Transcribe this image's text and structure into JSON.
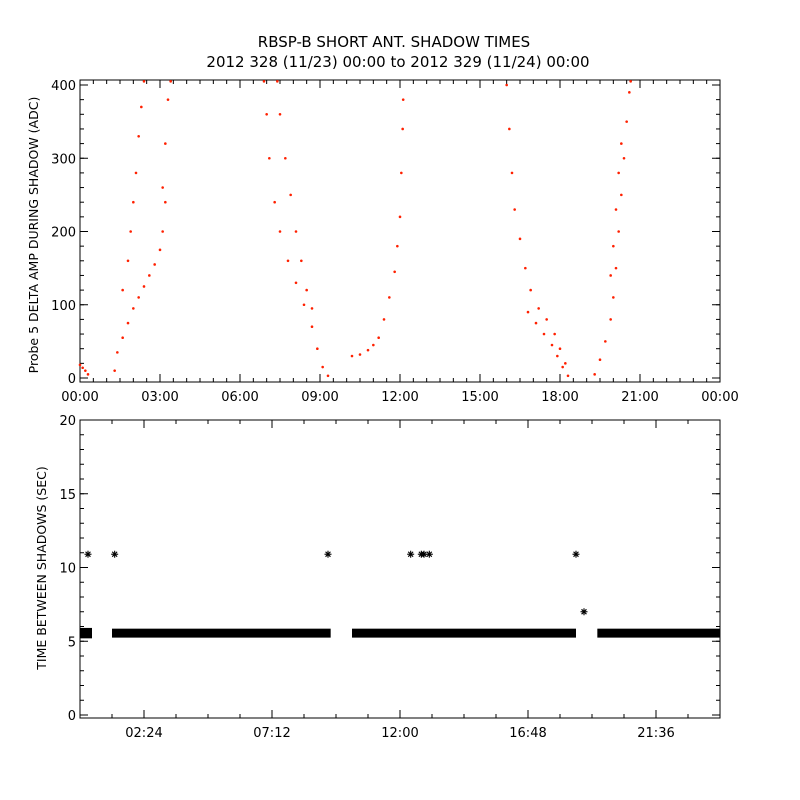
{
  "title": {
    "line1": "RBSP-B SHORT ANT. SHADOW TIMES",
    "line2": "2012 328 (11/23) 00:00 to 2012 329 (11/24) 00:00"
  },
  "colors": {
    "series_top": "#ff2000",
    "series_bottom": "#000000"
  },
  "chart_data": [
    {
      "type": "scatter",
      "ylabel": "Probe 5 DELTA AMP DURING SHADOW (ADC)",
      "xlabel": "",
      "x_unit": "hours",
      "xlim": [
        0,
        24
      ],
      "ylim": [
        0,
        400
      ],
      "x_tick_labels": [
        "00:00",
        "03:00",
        "06:00",
        "09:00",
        "12:00",
        "15:00",
        "18:00",
        "21:00",
        "00:00"
      ],
      "x_tick_values": [
        0,
        3,
        6,
        9,
        12,
        15,
        18,
        21,
        24
      ],
      "y_tick_labels": [
        "0",
        "100",
        "200",
        "300",
        "400"
      ],
      "y_tick_values": [
        0,
        100,
        200,
        300,
        400
      ],
      "grid": false,
      "series": [
        {
          "points": [
            [
              0.0,
              18
            ],
            [
              0.1,
              14
            ],
            [
              0.2,
              10
            ],
            [
              0.3,
              5
            ],
            [
              1.3,
              10
            ],
            [
              1.4,
              35
            ],
            [
              1.6,
              55
            ],
            [
              1.8,
              75
            ],
            [
              2.0,
              95
            ],
            [
              2.2,
              110
            ],
            [
              2.4,
              125
            ],
            [
              2.6,
              140
            ],
            [
              2.8,
              155
            ],
            [
              3.0,
              175
            ],
            [
              3.1,
              200
            ],
            [
              3.2,
              240
            ],
            [
              1.6,
              120
            ],
            [
              1.8,
              160
            ],
            [
              1.9,
              200
            ],
            [
              2.0,
              240
            ],
            [
              2.1,
              280
            ],
            [
              2.2,
              330
            ],
            [
              2.3,
              370
            ],
            [
              2.4,
              405
            ],
            [
              3.1,
              260
            ],
            [
              3.2,
              320
            ],
            [
              3.3,
              380
            ],
            [
              3.4,
              405
            ],
            [
              6.9,
              405
            ],
            [
              7.0,
              360
            ],
            [
              7.1,
              300
            ],
            [
              7.3,
              240
            ],
            [
              7.5,
              200
            ],
            [
              7.8,
              160
            ],
            [
              8.1,
              130
            ],
            [
              8.4,
              100
            ],
            [
              8.7,
              70
            ],
            [
              8.9,
              40
            ],
            [
              9.1,
              15
            ],
            [
              9.3,
              3
            ],
            [
              7.4,
              405
            ],
            [
              7.5,
              360
            ],
            [
              7.7,
              300
            ],
            [
              7.9,
              250
            ],
            [
              8.1,
              200
            ],
            [
              8.3,
              160
            ],
            [
              8.5,
              120
            ],
            [
              8.7,
              95
            ],
            [
              10.2,
              30
            ],
            [
              10.5,
              32
            ],
            [
              10.8,
              38
            ],
            [
              11.0,
              45
            ],
            [
              11.2,
              55
            ],
            [
              11.4,
              80
            ],
            [
              11.6,
              110
            ],
            [
              11.8,
              145
            ],
            [
              11.9,
              180
            ],
            [
              12.0,
              220
            ],
            [
              12.05,
              280
            ],
            [
              12.1,
              340
            ],
            [
              12.12,
              380
            ],
            [
              16.0,
              400
            ],
            [
              16.1,
              340
            ],
            [
              16.2,
              280
            ],
            [
              16.3,
              230
            ],
            [
              16.5,
              190
            ],
            [
              16.7,
              150
            ],
            [
              16.9,
              120
            ],
            [
              17.2,
              95
            ],
            [
              17.5,
              80
            ],
            [
              17.8,
              60
            ],
            [
              18.0,
              40
            ],
            [
              18.2,
              20
            ],
            [
              18.3,
              3
            ],
            [
              16.8,
              90
            ],
            [
              17.1,
              75
            ],
            [
              17.4,
              60
            ],
            [
              17.7,
              45
            ],
            [
              17.9,
              30
            ],
            [
              18.1,
              15
            ],
            [
              19.3,
              5
            ],
            [
              19.5,
              25
            ],
            [
              19.7,
              50
            ],
            [
              19.9,
              80
            ],
            [
              20.0,
              110
            ],
            [
              20.1,
              150
            ],
            [
              20.2,
              200
            ],
            [
              20.3,
              250
            ],
            [
              20.4,
              300
            ],
            [
              20.5,
              350
            ],
            [
              20.6,
              390
            ],
            [
              20.65,
              405
            ],
            [
              19.9,
              140
            ],
            [
              20.0,
              180
            ],
            [
              20.1,
              230
            ],
            [
              20.2,
              280
            ],
            [
              20.3,
              320
            ]
          ]
        }
      ]
    },
    {
      "type": "scatter",
      "ylabel": "TIME BETWEEN SHADOWS (SEC)",
      "xlabel": "",
      "x_unit": "hours",
      "xlim": [
        0,
        24
      ],
      "ylim": [
        0,
        20
      ],
      "x_tick_labels": [
        "02:24",
        "07:12",
        "12:00",
        "16:48",
        "21:36"
      ],
      "x_tick_values": [
        2.4,
        7.2,
        12.0,
        16.8,
        21.6
      ],
      "y_tick_labels": [
        "0",
        "5",
        "10",
        "15",
        "20"
      ],
      "y_tick_values": [
        0,
        5,
        10,
        15,
        20
      ],
      "grid": false,
      "series": [
        {
          "marker": "asterisk",
          "dense_bands": [
            {
              "x_start": 0.0,
              "x_end": 0.45,
              "y": [
                5.4,
                5.7
              ]
            },
            {
              "x_start": 1.2,
              "x_end": 9.4,
              "y": [
                5.45,
                5.65
              ]
            },
            {
              "x_start": 10.2,
              "x_end": 18.6,
              "y": [
                5.45,
                5.65
              ]
            },
            {
              "x_start": 19.4,
              "x_end": 24.0,
              "y": [
                5.45,
                5.65
              ]
            }
          ],
          "points": [
            [
              0.3,
              10.9
            ],
            [
              1.3,
              10.9
            ],
            [
              9.3,
              10.9
            ],
            [
              12.4,
              10.9
            ],
            [
              12.8,
              10.9
            ],
            [
              12.9,
              10.9
            ],
            [
              13.1,
              10.9
            ],
            [
              18.6,
              10.9
            ],
            [
              18.9,
              7.0
            ]
          ]
        }
      ]
    }
  ]
}
